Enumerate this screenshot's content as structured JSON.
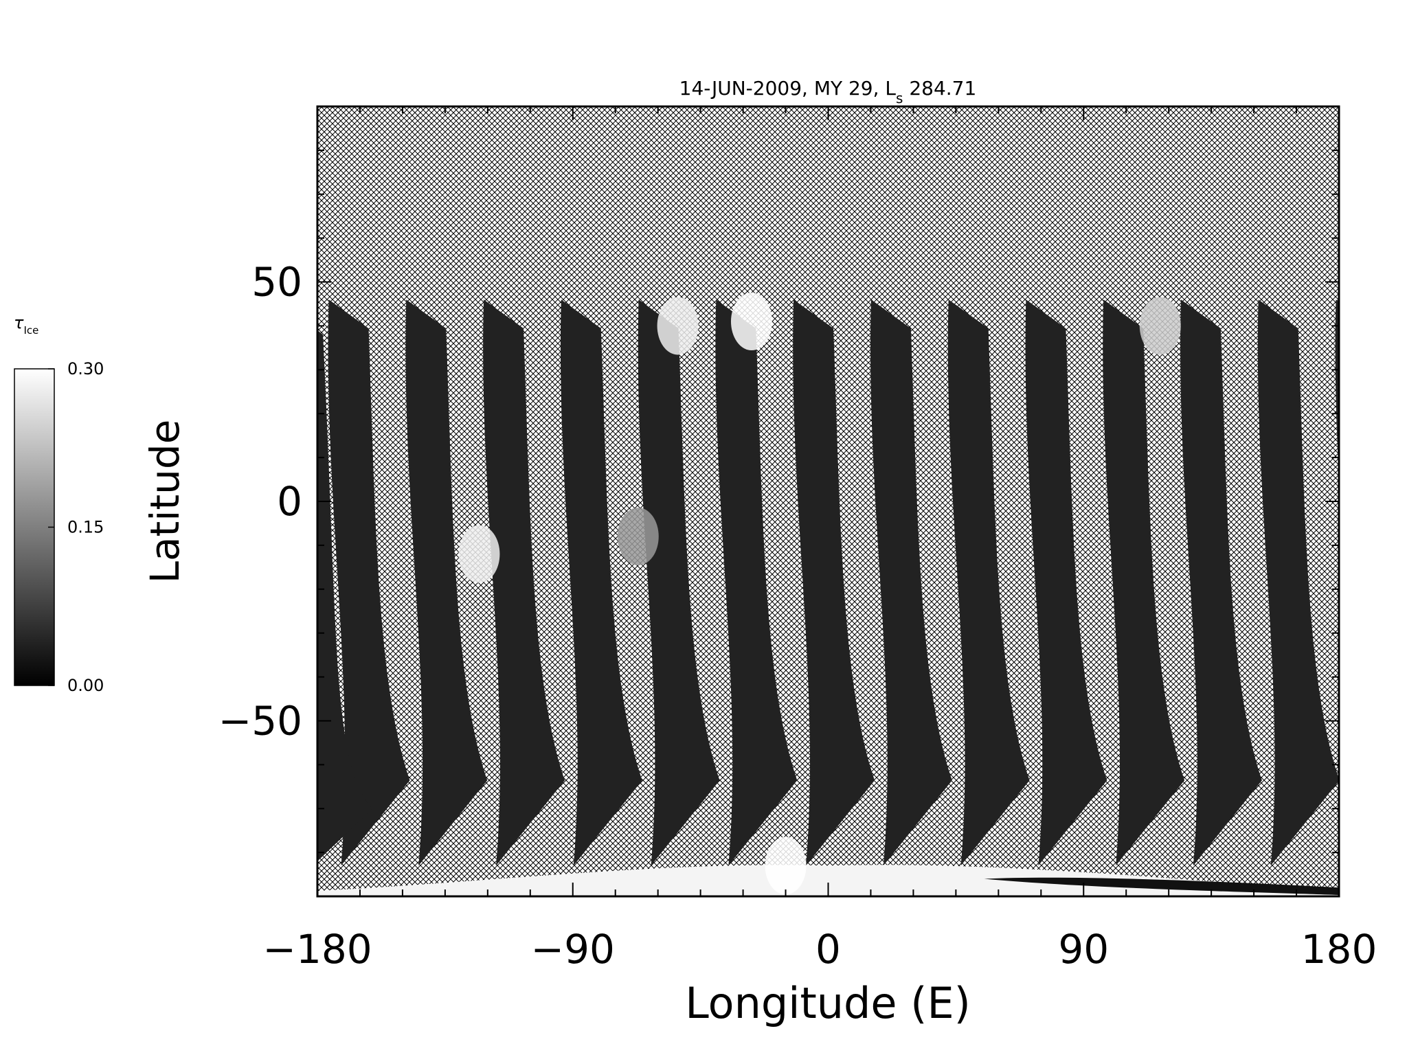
{
  "chart_data": {
    "type": "heatmap",
    "title": "14-JUN-2009, MY 29,  L",
    "title_subscript": "s",
    "title_suffix": " 284.71",
    "xlabel": "Longitude (E)",
    "ylabel": "Latitude",
    "xlim": [
      -180,
      180
    ],
    "ylim": [
      -90,
      90
    ],
    "xticks": [
      -180,
      -90,
      0,
      90,
      180
    ],
    "xtick_labels": [
      "−180",
      "−90",
      "0",
      "90",
      "180"
    ],
    "yticks": [
      -50,
      0,
      50
    ],
    "ytick_labels": [
      "−50",
      "0",
      "50"
    ],
    "grid": false,
    "no_data_fill": "crosshatch",
    "colorbar": {
      "label": "τ",
      "label_subscript": "Ice",
      "range": [
        0.0,
        0.3
      ],
      "ticks": [
        0.0,
        0.15,
        0.3
      ],
      "tick_labels": [
        "0.00",
        "0.15",
        "0.30"
      ],
      "colormap": "grayscale",
      "low_color": "#000000",
      "high_color": "#ffffff"
    },
    "swaths": {
      "count": 14,
      "start_longitude": -176,
      "spacing_deg": 27.3,
      "lat_top": 46,
      "lat_bottom": -83,
      "base_tau": 0.04
    },
    "bright_features": [
      {
        "lon": -53,
        "lat": 40,
        "tau": 0.28
      },
      {
        "lon": -27,
        "lat": 41,
        "tau": 0.3
      },
      {
        "lon": 117,
        "lat": 40,
        "tau": 0.24
      },
      {
        "lon": -123,
        "lat": -12,
        "tau": 0.28
      },
      {
        "lon": -67,
        "lat": -8,
        "tau": 0.18
      },
      {
        "lon": -15,
        "lat": -83,
        "tau": 0.3
      }
    ]
  }
}
